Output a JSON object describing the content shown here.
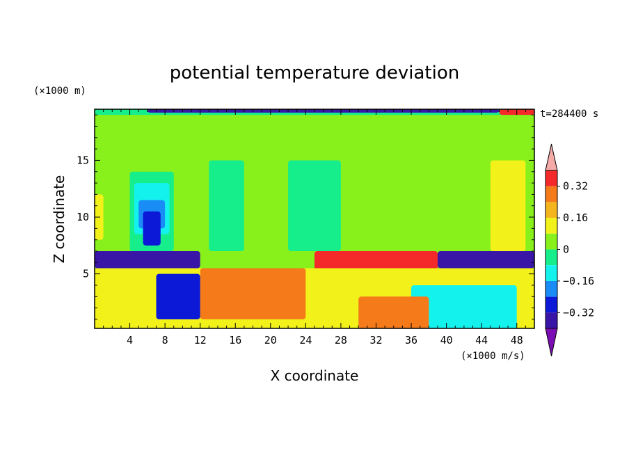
{
  "chart_data": {
    "type": "heatmap",
    "title": "potential temperature deviation",
    "xlabel": "X coordinate",
    "ylabel": "Z coordinate",
    "x_unit": "(×1000 m/s)",
    "y_unit": "(×1000 m)",
    "time_label": "t=284400 s",
    "xlim": [
      0,
      50
    ],
    "ylim": [
      0.2,
      19.5
    ],
    "x_ticks": [
      4,
      8,
      12,
      16,
      20,
      24,
      28,
      32,
      36,
      40,
      44,
      48
    ],
    "y_ticks": [
      5,
      10,
      15
    ],
    "colorbar": {
      "levels": [
        -0.4,
        -0.32,
        -0.24,
        -0.16,
        -0.08,
        0,
        0.08,
        0.16,
        0.24,
        0.32,
        0.4
      ],
      "tick_labels": [
        "0.32",
        "0.16",
        "0",
        "−0.16",
        "−0.32"
      ],
      "tick_values": [
        0.32,
        0.16,
        0,
        -0.16,
        -0.32
      ],
      "colors": [
        "#7a0eb2",
        "#3a16a6",
        "#0c1ad8",
        "#1a8cf6",
        "#14f2ee",
        "#16ee8c",
        "#88f01a",
        "#f2f21a",
        "#f4b41e",
        "#f47a1a",
        "#f42a2a",
        "#f4aaa6"
      ],
      "extend": "both"
    },
    "regions": [
      {
        "value": 0.02,
        "x0": 0,
        "x1": 50,
        "z0": 7,
        "z1": 19.5
      },
      {
        "value": 0.1,
        "x0": 0,
        "x1": 1,
        "z0": 8,
        "z1": 12
      },
      {
        "value": 0.1,
        "x0": 45,
        "x1": 49,
        "z0": 7,
        "z1": 15
      },
      {
        "value": -0.04,
        "x0": 4,
        "x1": 9,
        "z0": 7,
        "z1": 14
      },
      {
        "value": -0.1,
        "x0": 4.5,
        "x1": 8.5,
        "z0": 8.5,
        "z1": 13
      },
      {
        "value": -0.2,
        "x0": 5,
        "x1": 8,
        "z0": 9,
        "z1": 11.5
      },
      {
        "value": -0.3,
        "x0": 5.5,
        "x1": 7.5,
        "z0": 7.5,
        "z1": 10.5
      },
      {
        "value": -0.02,
        "x0": 13,
        "x1": 17,
        "z0": 7,
        "z1": 15
      },
      {
        "value": -0.02,
        "x0": 22,
        "x1": 28,
        "z0": 7,
        "z1": 15
      },
      {
        "value": 0.38,
        "x0": 25,
        "x1": 39,
        "z0": 4.5,
        "z1": 7
      },
      {
        "value": -0.36,
        "x0": 0,
        "x1": 12,
        "z0": 5.5,
        "z1": 7
      },
      {
        "value": -0.36,
        "x0": 39,
        "x1": 50,
        "z0": 5.5,
        "z1": 7
      },
      {
        "value": 0.14,
        "x0": 0,
        "x1": 50,
        "z0": 0.2,
        "z1": 5.5
      },
      {
        "value": 0.26,
        "x0": 12,
        "x1": 24,
        "z0": 1,
        "z1": 5.5
      },
      {
        "value": -0.26,
        "x0": 7,
        "x1": 12,
        "z0": 1,
        "z1": 5
      },
      {
        "value": -0.16,
        "x0": 36,
        "x1": 48,
        "z0": 0.2,
        "z1": 4
      },
      {
        "value": 0.3,
        "x0": 30,
        "x1": 38,
        "z0": 0.2,
        "z1": 3
      },
      {
        "value": -0.02,
        "x0": 0,
        "x1": 50,
        "z0": 19,
        "z1": 19.5
      },
      {
        "value": -0.36,
        "x0": 6,
        "x1": 46,
        "z0": 19.2,
        "z1": 19.5
      },
      {
        "value": 0.38,
        "x0": 46,
        "x1": 50,
        "z0": 19,
        "z1": 19.5
      }
    ]
  }
}
